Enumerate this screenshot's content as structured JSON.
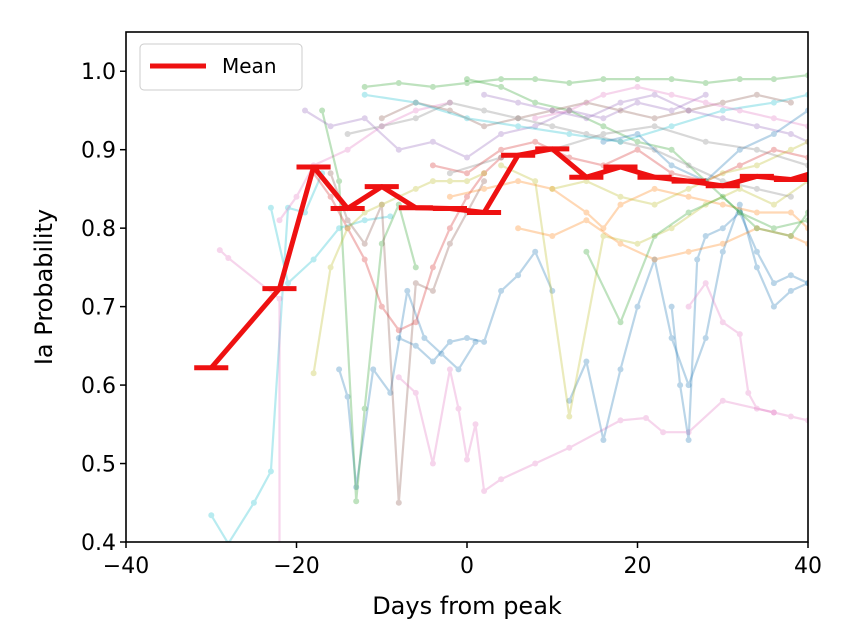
{
  "chart_data": {
    "type": "line",
    "xlabel": "Days from peak",
    "ylabel": "Ia Probability",
    "xlim": [
      -40,
      40
    ],
    "ylim": [
      0.4,
      1.05
    ],
    "x_ticks": [
      -40,
      -20,
      0,
      20,
      40
    ],
    "x_tick_labels": [
      "−40",
      "−20",
      "0",
      "20",
      "40"
    ],
    "y_ticks": [
      0.4,
      0.5,
      0.6,
      0.7,
      0.8,
      0.9,
      1.0
    ],
    "y_tick_labels": [
      "0.4",
      "0.5",
      "0.6",
      "0.7",
      "0.8",
      "0.9",
      "1.0"
    ],
    "grid": false,
    "legend_position": "top-left",
    "mean_series": {
      "name": "Mean",
      "color": "#ee1111",
      "x": [
        -30,
        -22,
        -18,
        -14,
        -10,
        -6,
        -2,
        2,
        6,
        10,
        14,
        18,
        22,
        26,
        30,
        34,
        38,
        42
      ],
      "y": [
        0.622,
        0.723,
        0.878,
        0.825,
        0.853,
        0.826,
        0.825,
        0.82,
        0.893,
        0.901,
        0.865,
        0.878,
        0.865,
        0.86,
        0.854,
        0.866,
        0.862,
        0.875
      ],
      "bar_halfwidth_days": 2
    },
    "background_series": [
      {
        "color": "#17becf",
        "x": [
          -30,
          -28,
          -25,
          -23,
          -21,
          -19,
          -17
        ],
        "y": [
          0.434,
          0.398,
          0.45,
          0.49,
          0.826,
          0.82,
          0.87
        ]
      },
      {
        "color": "#17becf",
        "x": [
          -23,
          -21,
          -18,
          -15,
          -12,
          -9
        ],
        "y": [
          0.826,
          0.73,
          0.76,
          0.8,
          0.81,
          0.815
        ]
      },
      {
        "color": "#e377c2",
        "x": [
          -29,
          -28,
          -22,
          -22
        ],
        "y": [
          0.772,
          0.762,
          0.71,
          0.38
        ]
      },
      {
        "color": "#e377c2",
        "x": [
          -22,
          -20,
          -18,
          -14,
          -10,
          -6,
          -2
        ],
        "y": [
          0.81,
          0.84,
          0.88,
          0.9,
          0.93,
          0.95,
          0.96
        ]
      },
      {
        "color": "#1f77b4",
        "x": [
          -15,
          -14,
          -13,
          -11,
          -9,
          -7,
          -5,
          -3,
          -1,
          1
        ],
        "y": [
          0.62,
          0.585,
          0.47,
          0.62,
          0.59,
          0.72,
          0.66,
          0.64,
          0.62,
          0.655
        ]
      },
      {
        "color": "#2ca02c",
        "x": [
          -17,
          -15,
          -13,
          -12,
          -10,
          -8,
          -6
        ],
        "y": [
          0.95,
          0.86,
          0.452,
          0.57,
          0.78,
          0.83,
          0.75
        ]
      },
      {
        "color": "#8c564b",
        "x": [
          -16,
          -14,
          -12,
          -10,
          -8,
          -6,
          -4,
          -2,
          0,
          2
        ],
        "y": [
          0.87,
          0.81,
          0.78,
          0.83,
          0.45,
          0.73,
          0.72,
          0.78,
          0.82,
          0.86
        ]
      },
      {
        "color": "#d62728",
        "x": [
          -18,
          -16,
          -14,
          -12,
          -10,
          -8,
          -6,
          -4,
          -2,
          0,
          2,
          4
        ],
        "y": [
          0.87,
          0.84,
          0.8,
          0.76,
          0.7,
          0.67,
          0.68,
          0.75,
          0.8,
          0.84,
          0.87,
          0.89
        ]
      },
      {
        "color": "#bcbd22",
        "x": [
          -18,
          -16,
          -14,
          -12,
          -10,
          -8,
          -6,
          -4,
          -2,
          0,
          2
        ],
        "y": [
          0.615,
          0.75,
          0.8,
          0.82,
          0.83,
          0.84,
          0.85,
          0.86,
          0.86,
          0.86,
          0.87
        ]
      },
      {
        "color": "#9467bd",
        "x": [
          -19,
          -16,
          -12,
          -8,
          -4,
          0,
          4,
          8,
          12,
          16,
          20,
          24,
          28
        ],
        "y": [
          0.95,
          0.93,
          0.94,
          0.9,
          0.91,
          0.89,
          0.92,
          0.93,
          0.95,
          0.94,
          0.96,
          0.95,
          0.97
        ]
      },
      {
        "color": "#1f77b4",
        "x": [
          -8,
          -6,
          -4,
          -2,
          0,
          2,
          4,
          6,
          8,
          10
        ],
        "y": [
          0.66,
          0.65,
          0.63,
          0.655,
          0.66,
          0.655,
          0.72,
          0.74,
          0.77,
          0.72
        ]
      },
      {
        "color": "#e377c2",
        "x": [
          -8,
          -6,
          -4,
          -2,
          -1,
          0,
          1,
          2,
          4,
          8,
          12,
          18,
          21,
          23,
          26,
          30,
          36
        ],
        "y": [
          0.61,
          0.59,
          0.5,
          0.62,
          0.57,
          0.505,
          0.55,
          0.465,
          0.48,
          0.5,
          0.52,
          0.555,
          0.558,
          0.54,
          0.54,
          0.58,
          0.565
        ]
      },
      {
        "color": "#1f77b4",
        "x": [
          12,
          14,
          16,
          18,
          20,
          22,
          24,
          26,
          28,
          30,
          32,
          34,
          36,
          38,
          40
        ],
        "y": [
          0.58,
          0.63,
          0.53,
          0.62,
          0.7,
          0.76,
          0.66,
          0.6,
          0.66,
          0.77,
          0.83,
          0.75,
          0.7,
          0.72,
          0.73
        ]
      },
      {
        "color": "#1f77b4",
        "x": [
          24,
          25,
          26,
          27,
          28,
          30,
          32,
          34,
          36,
          38,
          40
        ],
        "y": [
          0.7,
          0.6,
          0.53,
          0.76,
          0.79,
          0.8,
          0.82,
          0.77,
          0.73,
          0.74,
          0.73
        ]
      },
      {
        "color": "#e377c2",
        "x": [
          26,
          28,
          30,
          32,
          33,
          34,
          36,
          38,
          40
        ],
        "y": [
          0.7,
          0.73,
          0.68,
          0.665,
          0.59,
          0.57,
          0.565,
          0.56,
          0.555
        ]
      },
      {
        "color": "#ff7f0e",
        "x": [
          -2,
          2,
          6,
          10,
          14,
          16,
          18,
          22,
          26,
          30,
          34,
          38,
          40
        ],
        "y": [
          0.84,
          0.85,
          0.86,
          0.85,
          0.82,
          0.8,
          0.83,
          0.85,
          0.84,
          0.83,
          0.82,
          0.82,
          0.8
        ]
      },
      {
        "color": "#bcbd22",
        "x": [
          4,
          8,
          12,
          16,
          20,
          24,
          28,
          32,
          36,
          40
        ],
        "y": [
          0.88,
          0.86,
          0.56,
          0.79,
          0.78,
          0.8,
          0.83,
          0.85,
          0.83,
          0.86
        ]
      },
      {
        "color": "#2ca02c",
        "x": [
          0,
          4,
          8,
          12,
          16,
          20,
          24,
          28,
          32,
          36,
          40
        ],
        "y": [
          0.99,
          0.98,
          0.96,
          0.95,
          0.93,
          0.91,
          0.9,
          0.86,
          0.82,
          0.8,
          0.81
        ]
      },
      {
        "color": "#2ca02c",
        "x": [
          -12,
          -8,
          -4,
          0,
          4,
          8,
          12,
          16,
          20,
          24,
          28,
          32,
          36,
          40
        ],
        "y": [
          0.98,
          0.985,
          0.98,
          0.985,
          0.99,
          0.99,
          0.985,
          0.99,
          0.99,
          0.99,
          0.985,
          0.99,
          0.99,
          0.995
        ]
      },
      {
        "color": "#8c564b",
        "x": [
          -10,
          -6,
          -2,
          2,
          6,
          10,
          14,
          18,
          22,
          26,
          30,
          34,
          38
        ],
        "y": [
          0.94,
          0.96,
          0.95,
          0.93,
          0.94,
          0.95,
          0.96,
          0.95,
          0.94,
          0.95,
          0.96,
          0.97,
          0.96
        ]
      },
      {
        "color": "#7f7f7f",
        "x": [
          -14,
          -10,
          -6,
          -2,
          2,
          6,
          10,
          14,
          18,
          22,
          26,
          30,
          34,
          38
        ],
        "y": [
          0.92,
          0.93,
          0.94,
          0.96,
          0.95,
          0.94,
          0.93,
          0.92,
          0.91,
          0.9,
          0.88,
          0.86,
          0.85,
          0.84
        ]
      },
      {
        "color": "#17becf",
        "x": [
          -12,
          -6,
          0,
          6,
          12,
          18,
          24,
          30,
          36,
          40
        ],
        "y": [
          0.97,
          0.96,
          0.94,
          0.93,
          0.92,
          0.91,
          0.93,
          0.95,
          0.96,
          0.97
        ]
      },
      {
        "color": "#d62728",
        "x": [
          -4,
          0,
          4,
          8,
          12,
          16,
          20,
          24,
          28,
          32,
          36,
          40
        ],
        "y": [
          0.88,
          0.87,
          0.9,
          0.91,
          0.89,
          0.88,
          0.9,
          0.87,
          0.86,
          0.88,
          0.9,
          0.89
        ]
      },
      {
        "color": "#9467bd",
        "x": [
          2,
          6,
          10,
          14,
          18,
          22,
          26,
          30,
          34,
          38,
          40
        ],
        "y": [
          0.97,
          0.96,
          0.95,
          0.94,
          0.96,
          0.97,
          0.95,
          0.94,
          0.93,
          0.92,
          0.91
        ]
      },
      {
        "color": "#ff7f0e",
        "x": [
          6,
          10,
          14,
          18,
          22,
          26,
          30,
          34,
          38,
          40
        ],
        "y": [
          0.8,
          0.79,
          0.81,
          0.78,
          0.76,
          0.77,
          0.78,
          0.8,
          0.79,
          0.78
        ]
      },
      {
        "color": "#e377c2",
        "x": [
          8,
          12,
          16,
          20,
          24,
          28,
          32,
          36,
          40
        ],
        "y": [
          0.94,
          0.95,
          0.97,
          0.98,
          0.97,
          0.96,
          0.95,
          0.94,
          0.93
        ]
      },
      {
        "color": "#bcbd22",
        "x": [
          10,
          14,
          18,
          22,
          26,
          30,
          34,
          38,
          40
        ],
        "y": [
          0.85,
          0.86,
          0.84,
          0.83,
          0.85,
          0.87,
          0.88,
          0.9,
          0.91
        ]
      },
      {
        "color": "#2ca02c",
        "x": [
          14,
          18,
          22,
          26,
          30,
          34,
          38,
          40
        ],
        "y": [
          0.77,
          0.68,
          0.79,
          0.82,
          0.84,
          0.8,
          0.79,
          0.82
        ]
      },
      {
        "color": "#1f77b4",
        "x": [
          16,
          20,
          24,
          28,
          32,
          36,
          40
        ],
        "y": [
          0.91,
          0.92,
          0.88,
          0.86,
          0.9,
          0.92,
          0.95
        ]
      },
      {
        "color": "#7f7f7f",
        "x": [
          -2,
          4,
          10,
          16,
          22,
          28,
          34,
          40
        ],
        "y": [
          0.87,
          0.89,
          0.9,
          0.92,
          0.93,
          0.91,
          0.9,
          0.88
        ]
      }
    ]
  }
}
